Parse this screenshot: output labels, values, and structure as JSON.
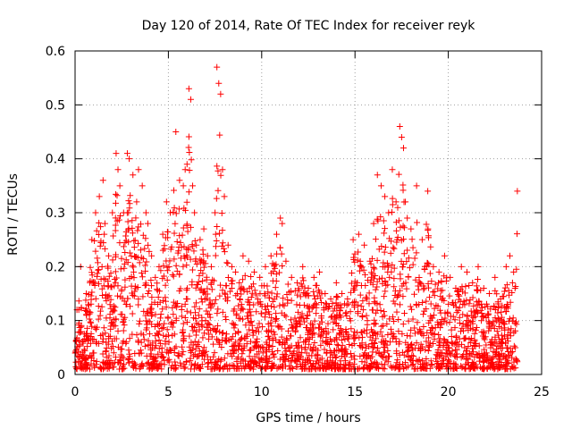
{
  "chart_data": {
    "type": "scatter",
    "title": "Day 120 of 2014, Rate Of TEC Index for receiver reyk",
    "xlabel": "GPS time / hours",
    "ylabel": "ROTI / TECUs",
    "xlim": [
      0,
      25
    ],
    "ylim": [
      0,
      0.6
    ],
    "x_ticks": [
      0,
      5,
      10,
      15,
      20,
      25
    ],
    "x_tick_labels": [
      "0",
      "5",
      "10",
      "15",
      "20",
      "25"
    ],
    "y_ticks": [
      0,
      0.1,
      0.2,
      0.3,
      0.4,
      0.5,
      0.6
    ],
    "y_tick_labels": [
      "0",
      "0.1",
      "0.2",
      "0.3",
      "0.4",
      "0.5",
      "0.6"
    ],
    "grid": true,
    "marker": "+",
    "color": "#ff0000",
    "series": [
      {
        "name": "ROTI",
        "x": [
          0.1,
          0.3,
          0.6,
          0.9,
          1.1,
          1.3,
          1.5,
          1.6,
          1.8,
          2.0,
          2.2,
          2.3,
          2.4,
          2.6,
          2.8,
          2.9,
          3.1,
          3.3,
          3.4,
          3.6,
          3.8,
          3.9,
          4.1,
          4.3,
          4.5,
          4.7,
          4.9,
          5.1,
          5.4,
          5.6,
          5.8,
          5.9,
          6.0,
          6.1,
          6.2,
          6.3,
          6.4,
          6.5,
          6.7,
          6.9,
          7.1,
          7.3,
          7.5,
          7.6,
          7.7,
          7.8,
          7.9,
          8.0,
          8.2,
          8.4,
          8.6,
          8.8,
          9.0,
          9.3,
          9.6,
          9.9,
          10.2,
          10.5,
          10.8,
          11.0,
          11.1,
          11.3,
          11.6,
          11.9,
          12.2,
          12.5,
          12.8,
          13.1,
          13.4,
          13.7,
          14.0,
          14.3,
          14.6,
          14.9,
          15.2,
          15.5,
          15.8,
          16.0,
          16.2,
          16.4,
          16.6,
          16.8,
          17.0,
          17.2,
          17.4,
          17.5,
          17.6,
          17.7,
          17.8,
          18.0,
          18.3,
          18.6,
          18.9,
          19.2,
          19.5,
          19.8,
          20.1,
          20.4,
          20.7,
          21.0,
          21.3,
          21.6,
          21.9,
          22.2,
          22.5,
          22.8,
          23.1,
          23.3,
          23.5,
          23.7
        ],
        "y": [
          0.12,
          0.2,
          0.15,
          0.25,
          0.3,
          0.33,
          0.36,
          0.28,
          0.22,
          0.3,
          0.41,
          0.38,
          0.35,
          0.3,
          0.41,
          0.4,
          0.37,
          0.32,
          0.38,
          0.35,
          0.3,
          0.28,
          0.22,
          0.18,
          0.2,
          0.26,
          0.32,
          0.3,
          0.45,
          0.36,
          0.35,
          0.38,
          0.39,
          0.53,
          0.51,
          0.35,
          0.3,
          0.24,
          0.25,
          0.27,
          0.22,
          0.2,
          0.3,
          0.57,
          0.54,
          0.52,
          0.38,
          0.33,
          0.24,
          0.2,
          0.19,
          0.17,
          0.22,
          0.21,
          0.19,
          0.18,
          0.2,
          0.22,
          0.26,
          0.29,
          0.28,
          0.21,
          0.18,
          0.17,
          0.2,
          0.16,
          0.18,
          0.19,
          0.15,
          0.14,
          0.17,
          0.15,
          0.14,
          0.25,
          0.26,
          0.24,
          0.21,
          0.28,
          0.37,
          0.35,
          0.33,
          0.3,
          0.38,
          0.32,
          0.46,
          0.44,
          0.42,
          0.32,
          0.29,
          0.27,
          0.35,
          0.25,
          0.34,
          0.2,
          0.19,
          0.22,
          0.18,
          0.16,
          0.2,
          0.19,
          0.17,
          0.2,
          0.16,
          0.15,
          0.18,
          0.14,
          0.2,
          0.22,
          0.19,
          0.34
        ]
      }
    ]
  }
}
